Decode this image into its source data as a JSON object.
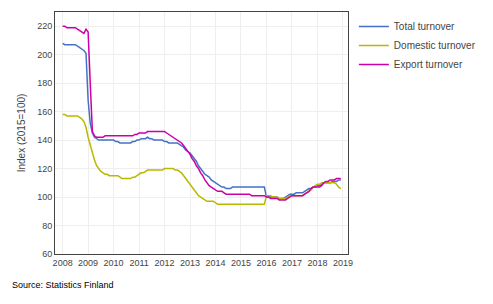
{
  "chart_data": {
    "type": "line",
    "ylabel": "Index (2015=100)",
    "annotations": [
      "Source: Statistics Finland"
    ],
    "xlim": [
      2007.7,
      2019.2
    ],
    "xticks": [
      2008,
      2009,
      2010,
      2011,
      2012,
      2013,
      2014,
      2015,
      2016,
      2017,
      2018,
      2019
    ],
    "ylim": [
      60,
      230
    ],
    "yticks": [
      60,
      80,
      100,
      120,
      140,
      160,
      180,
      200,
      220
    ],
    "grid": true,
    "legend": "right",
    "x": [
      2008.0,
      2008.083,
      2008.167,
      2008.25,
      2008.333,
      2008.417,
      2008.5,
      2008.583,
      2008.667,
      2008.75,
      2008.833,
      2008.917,
      2009.0,
      2009.083,
      2009.167,
      2009.25,
      2009.333,
      2009.417,
      2009.5,
      2009.583,
      2009.667,
      2009.75,
      2009.833,
      2009.917,
      2010.0,
      2010.083,
      2010.167,
      2010.25,
      2010.333,
      2010.417,
      2010.5,
      2010.583,
      2010.667,
      2010.75,
      2010.833,
      2010.917,
      2011.0,
      2011.083,
      2011.167,
      2011.25,
      2011.333,
      2011.417,
      2011.5,
      2011.583,
      2011.667,
      2011.75,
      2011.833,
      2011.917,
      2012.0,
      2012.083,
      2012.167,
      2012.25,
      2012.333,
      2012.417,
      2012.5,
      2012.583,
      2012.667,
      2012.75,
      2012.833,
      2012.917,
      2013.0,
      2013.083,
      2013.167,
      2013.25,
      2013.333,
      2013.417,
      2013.5,
      2013.583,
      2013.667,
      2013.75,
      2013.833,
      2013.917,
      2014.0,
      2014.083,
      2014.167,
      2014.25,
      2014.333,
      2014.417,
      2014.5,
      2014.583,
      2014.667,
      2014.75,
      2014.833,
      2014.917,
      2015.0,
      2015.083,
      2015.167,
      2015.25,
      2015.333,
      2015.417,
      2015.5,
      2015.583,
      2015.667,
      2015.75,
      2015.833,
      2015.917,
      2016.0,
      2016.083,
      2016.167,
      2016.25,
      2016.333,
      2016.417,
      2016.5,
      2016.583,
      2016.667,
      2016.75,
      2016.833,
      2016.917,
      2017.0,
      2017.083,
      2017.167,
      2017.25,
      2017.333,
      2017.417,
      2017.5,
      2017.583,
      2017.667,
      2017.75,
      2017.833,
      2017.917,
      2018.0,
      2018.083,
      2018.167,
      2018.25,
      2018.333,
      2018.417,
      2018.5,
      2018.583,
      2018.667,
      2018.75,
      2018.833,
      2018.917
    ],
    "series": [
      {
        "name": "Total turnover",
        "color": "#4472c4",
        "values": [
          208,
          207,
          207,
          207,
          207,
          207,
          207,
          206,
          205,
          204,
          203,
          201,
          168,
          152,
          145,
          142,
          141,
          140,
          140,
          140,
          140,
          140,
          140,
          140,
          140,
          139,
          139,
          138,
          138,
          138,
          138,
          138,
          138,
          139,
          139,
          140,
          140,
          141,
          141,
          141,
          142,
          141,
          141,
          140,
          140,
          140,
          140,
          140,
          139,
          139,
          138,
          138,
          138,
          138,
          138,
          137,
          136,
          135,
          133,
          132,
          131,
          129,
          127,
          125,
          122,
          120,
          118,
          116,
          115,
          114,
          112,
          111,
          110,
          109,
          108,
          107,
          107,
          106,
          106,
          106,
          107,
          107,
          107,
          107,
          107,
          107,
          107,
          107,
          107,
          107,
          107,
          107,
          107,
          107,
          107,
          107,
          100,
          100,
          100,
          100,
          100,
          100,
          99,
          99,
          99,
          100,
          101,
          102,
          102,
          102,
          103,
          103,
          103,
          103,
          104,
          105,
          106,
          106,
          107,
          107,
          108,
          108,
          109,
          110,
          110,
          110,
          110,
          111,
          111,
          111,
          112,
          112
        ]
      },
      {
        "name": "Domestic turnover",
        "color": "#b8b800",
        "values": [
          158,
          158,
          157,
          157,
          157,
          157,
          157,
          157,
          156,
          155,
          153,
          149,
          142,
          136,
          130,
          126,
          122,
          120,
          118,
          117,
          116,
          116,
          115,
          115,
          115,
          115,
          115,
          114,
          113,
          113,
          113,
          113,
          113,
          114,
          114,
          115,
          116,
          117,
          117,
          118,
          119,
          119,
          119,
          119,
          119,
          119,
          119,
          119,
          120,
          120,
          120,
          120,
          120,
          119,
          119,
          118,
          117,
          115,
          113,
          111,
          109,
          107,
          105,
          103,
          101,
          100,
          99,
          98,
          97,
          97,
          97,
          97,
          96,
          95,
          95,
          95,
          95,
          95,
          95,
          95,
          95,
          95,
          95,
          95,
          95,
          95,
          95,
          95,
          95,
          95,
          95,
          95,
          95,
          95,
          95,
          95,
          101,
          101,
          101,
          100,
          100,
          100,
          99,
          99,
          99,
          99,
          100,
          101,
          101,
          101,
          101,
          101,
          101,
          101,
          102,
          103,
          104,
          105,
          107,
          108,
          109,
          109,
          110,
          110,
          110,
          110,
          110,
          110,
          110,
          109,
          107,
          106
        ]
      },
      {
        "name": "Export turnover",
        "color": "#cc00aa",
        "values": [
          220,
          220,
          219,
          219,
          219,
          219,
          219,
          218,
          217,
          216,
          215,
          218,
          216,
          180,
          146,
          143,
          142,
          142,
          142,
          142,
          143,
          143,
          143,
          143,
          143,
          143,
          143,
          143,
          143,
          143,
          143,
          143,
          143,
          143,
          144,
          144,
          145,
          145,
          145,
          145,
          146,
          146,
          146,
          146,
          146,
          146,
          146,
          146,
          146,
          145,
          144,
          143,
          142,
          141,
          140,
          139,
          138,
          136,
          134,
          132,
          130,
          127,
          125,
          122,
          120,
          117,
          115,
          112,
          110,
          108,
          107,
          106,
          105,
          104,
          104,
          104,
          103,
          102,
          102,
          102,
          102,
          102,
          102,
          102,
          102,
          102,
          102,
          102,
          102,
          101,
          101,
          101,
          101,
          101,
          101,
          101,
          100,
          100,
          99,
          99,
          99,
          99,
          98,
          98,
          98,
          98,
          99,
          100,
          101,
          101,
          101,
          101,
          101,
          101,
          102,
          103,
          104,
          106,
          107,
          107,
          107,
          107,
          108,
          110,
          111,
          111,
          112,
          112,
          112,
          113,
          113,
          113
        ]
      }
    ]
  }
}
